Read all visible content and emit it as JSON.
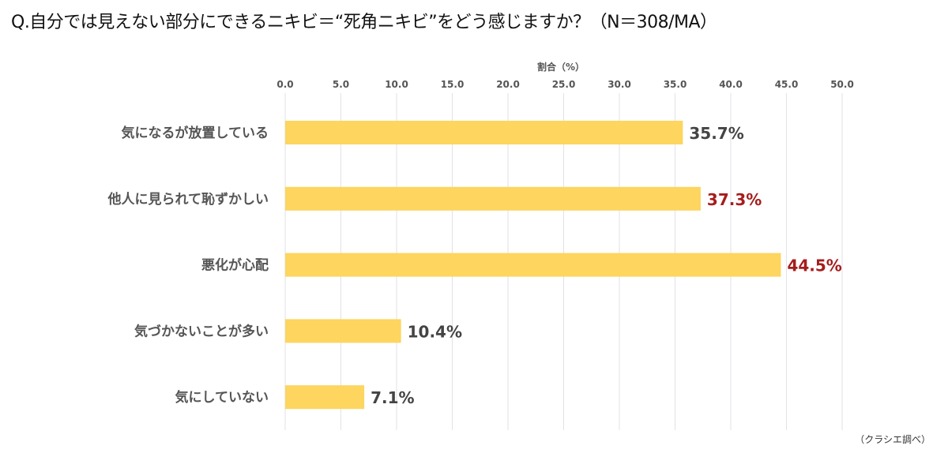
{
  "chart_data": {
    "type": "bar",
    "orientation": "horizontal",
    "title": "Q.自分では見えない部分にできるニキビ＝“死角ニキビ”をどう感じますか？（N＝308/MA）",
    "xlabel": "割合（%）",
    "ylabel": "",
    "xlim": [
      0,
      50
    ],
    "ticks": [
      "0.0",
      "5.0",
      "10.0",
      "15.0",
      "20.0",
      "25.0",
      "30.0",
      "35.0",
      "40.0",
      "45.0",
      "50.0"
    ],
    "categories": [
      "気になるが放置している",
      "他人に見られて恥ずかしい",
      "悪化が心配",
      "気づかないことが多い",
      "気にしていない"
    ],
    "values": [
      35.7,
      37.3,
      44.5,
      10.4,
      7.1
    ],
    "labels": [
      "35.7%",
      "37.3%",
      "44.5%",
      "10.4%",
      "7.1%"
    ],
    "highlight": [
      false,
      true,
      true,
      false,
      false
    ],
    "grid": true,
    "colors": {
      "bar": "#fdd55f",
      "label": "#444444",
      "highlight": "#a51d1d",
      "grid": "#e2e2e8"
    },
    "source_note": "（クラシエ調べ）"
  }
}
